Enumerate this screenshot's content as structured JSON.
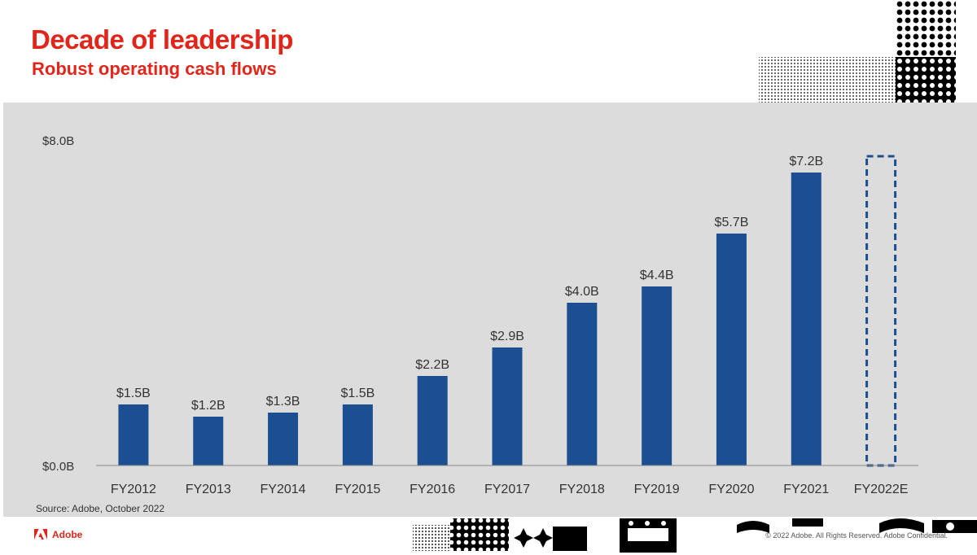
{
  "header": {
    "title": "Decade of leadership",
    "subtitle": "Robust operating cash flows"
  },
  "footer": {
    "source": "Source: Adobe, October 2022",
    "brand": "Adobe",
    "copyright": "© 2022 Adobe. All Rights Reserved. Adobe Confidential."
  },
  "colors": {
    "accent": "#e1251b",
    "bar": "#1b4f91",
    "panel": "#dcdcdc"
  },
  "chart_data": {
    "type": "bar",
    "title": "",
    "xlabel": "",
    "ylabel": "",
    "categories": [
      "FY2012",
      "FY2013",
      "FY2014",
      "FY2015",
      "FY2016",
      "FY2017",
      "FY2018",
      "FY2019",
      "FY2020",
      "FY2021",
      "FY2022E"
    ],
    "values": [
      1.5,
      1.2,
      1.3,
      1.5,
      2.2,
      2.9,
      4.0,
      4.4,
      5.7,
      7.2,
      null
    ],
    "data_labels": [
      "$1.5B",
      "$1.2B",
      "$1.3B",
      "$1.5B",
      "$2.2B",
      "$2.9B",
      "$4.0B",
      "$4.4B",
      "$5.7B",
      "$7.2B",
      ""
    ],
    "estimate_placeholder": {
      "category": "FY2022E",
      "style": "dashed-outline",
      "approx_value": 7.6
    },
    "ylim": [
      0,
      8
    ],
    "y_tick_labels": [
      "$0.0B",
      "$8.0B"
    ],
    "y_ticks": [
      0,
      8
    ],
    "grid": false,
    "legend": "none"
  }
}
